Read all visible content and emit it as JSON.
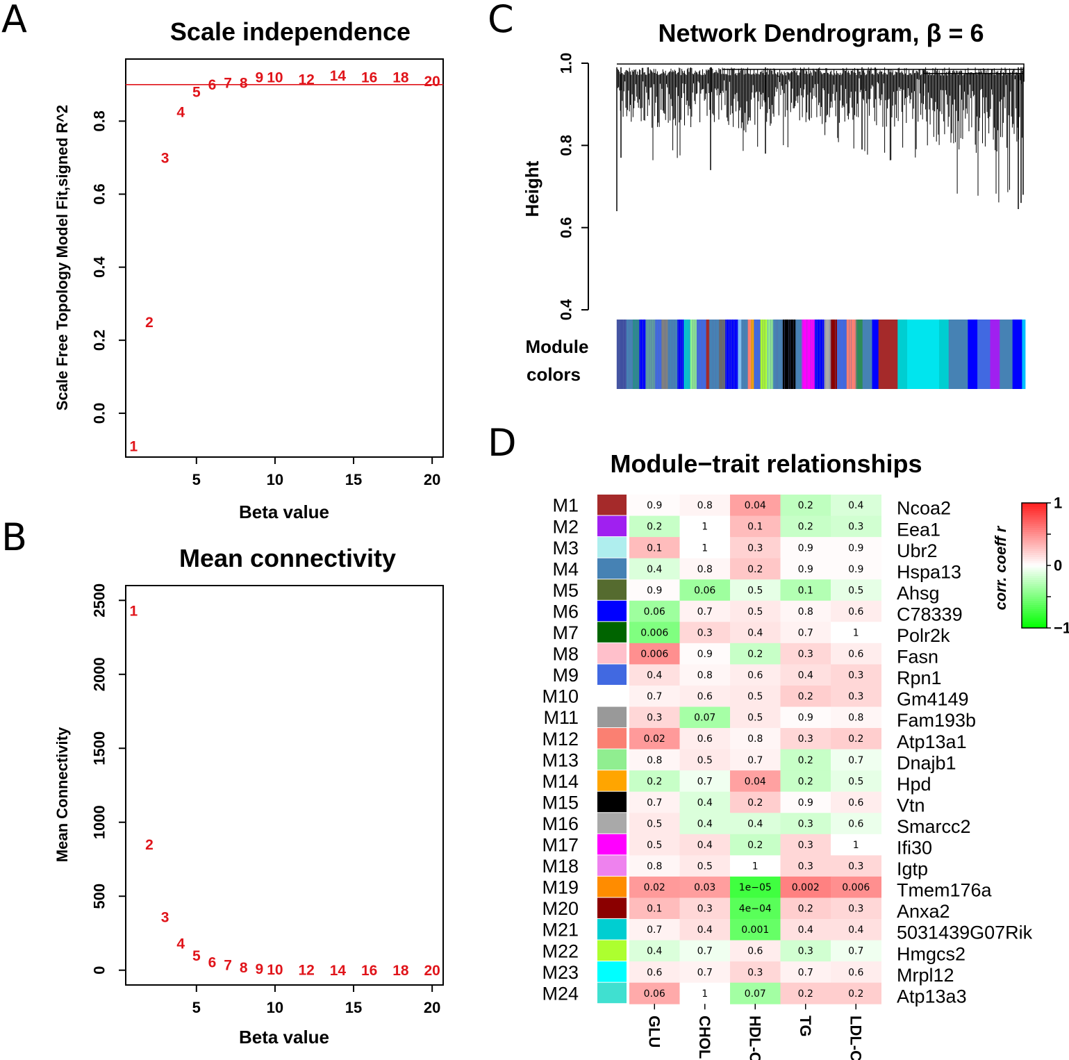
{
  "panel_letters": [
    "A",
    "B",
    "C",
    "D"
  ],
  "chart_data": [
    {
      "type": "scatter",
      "panel": "A",
      "title": "Scale independence",
      "xlabel": "Beta value",
      "ylabel": "Scale Free Topology Model Fit,signed R^2",
      "xlim": [
        0.5,
        20.7
      ],
      "ylim": [
        -0.12,
        0.97
      ],
      "x_ticks": [
        5,
        10,
        15,
        20
      ],
      "y_ticks": [
        0.0,
        0.2,
        0.4,
        0.6,
        0.8
      ],
      "y_tick_labels": [
        "0.0",
        "0.2",
        "0.4",
        "0.6",
        "0.8"
      ],
      "threshold_line": 0.9,
      "threshold_color": "#e0141a",
      "point_color": "#e0141a",
      "points": [
        {
          "x": 1,
          "y": -0.09,
          "label": "1"
        },
        {
          "x": 2,
          "y": 0.25,
          "label": "2"
        },
        {
          "x": 3,
          "y": 0.7,
          "label": "3"
        },
        {
          "x": 4,
          "y": 0.825,
          "label": "4"
        },
        {
          "x": 5,
          "y": 0.88,
          "label": "5"
        },
        {
          "x": 6,
          "y": 0.9,
          "label": "6"
        },
        {
          "x": 7,
          "y": 0.905,
          "label": "7"
        },
        {
          "x": 8,
          "y": 0.905,
          "label": "8"
        },
        {
          "x": 9,
          "y": 0.92,
          "label": "9"
        },
        {
          "x": 10,
          "y": 0.92,
          "label": "10"
        },
        {
          "x": 12,
          "y": 0.915,
          "label": "12"
        },
        {
          "x": 14,
          "y": 0.925,
          "label": "14"
        },
        {
          "x": 16,
          "y": 0.92,
          "label": "16"
        },
        {
          "x": 18,
          "y": 0.92,
          "label": "18"
        },
        {
          "x": 20,
          "y": 0.91,
          "label": "20"
        }
      ]
    },
    {
      "type": "scatter",
      "panel": "B",
      "title": "Mean connectivity",
      "xlabel": "Beta value",
      "ylabel": "Mean Connectivity",
      "xlim": [
        0.5,
        20.7
      ],
      "ylim": [
        -100,
        2600
      ],
      "x_ticks": [
        5,
        10,
        15,
        20
      ],
      "y_ticks": [
        0,
        500,
        1000,
        1500,
        2000,
        2500
      ],
      "y_tick_labels": [
        "0",
        "500",
        "1000",
        "1500",
        "2000",
        "2500"
      ],
      "point_color": "#e0141a",
      "points": [
        {
          "x": 1,
          "y": 2430,
          "label": "1"
        },
        {
          "x": 2,
          "y": 850,
          "label": "2"
        },
        {
          "x": 3,
          "y": 360,
          "label": "3"
        },
        {
          "x": 4,
          "y": 180,
          "label": "4"
        },
        {
          "x": 5,
          "y": 100,
          "label": "5"
        },
        {
          "x": 6,
          "y": 55,
          "label": "6"
        },
        {
          "x": 7,
          "y": 35,
          "label": "7"
        },
        {
          "x": 8,
          "y": 20,
          "label": "8"
        },
        {
          "x": 9,
          "y": 10,
          "label": "9"
        },
        {
          "x": 10,
          "y": 5,
          "label": "10"
        },
        {
          "x": 12,
          "y": 2,
          "label": "12"
        },
        {
          "x": 14,
          "y": 1,
          "label": "14"
        },
        {
          "x": 16,
          "y": 0,
          "label": "16"
        },
        {
          "x": 18,
          "y": 0,
          "label": "18"
        },
        {
          "x": 20,
          "y": 0,
          "label": "20"
        }
      ]
    },
    {
      "type": "dendrogram",
      "panel": "C",
      "title": "Network Dendrogram, β = 6",
      "ylabel": "Height",
      "ylim": [
        0.4,
        1.0
      ],
      "y_ticks": [
        0.4,
        0.6,
        0.8,
        1.0
      ],
      "y_tick_labels": [
        "0.4",
        "0.6",
        "0.8",
        "1.0"
      ],
      "color_bar_label_line1": "Module",
      "color_bar_label_line2": "colors",
      "color_bar": [
        {
          "color": "#3f4fa0",
          "w": 3
        },
        {
          "color": "#4682b4",
          "w": 2
        },
        {
          "color": "#2b8c8c",
          "w": 2
        },
        {
          "color": "#0000ff",
          "w": 2
        },
        {
          "color": "#5f9ea0",
          "w": 3
        },
        {
          "color": "#4169e1",
          "w": 2
        },
        {
          "color": "#808080",
          "w": 2
        },
        {
          "color": "#4682b4",
          "w": 3
        },
        {
          "color": "#0000ff",
          "w": 2
        },
        {
          "color": "#00ced1",
          "w": 2
        },
        {
          "color": "#90ee90",
          "w": 2
        },
        {
          "color": "#4169e1",
          "w": 3
        },
        {
          "color": "#a52a2a",
          "w": 1
        },
        {
          "color": "#4682b4",
          "w": 3
        },
        {
          "color": "#696969",
          "w": 2
        },
        {
          "color": "#0000ff",
          "w": 4
        },
        {
          "color": "#87cefa",
          "w": 1
        },
        {
          "color": "#4682b4",
          "w": 2
        },
        {
          "color": "#fa8072",
          "w": 1
        },
        {
          "color": "#ffa500",
          "w": 1
        },
        {
          "color": "#4169e1",
          "w": 2
        },
        {
          "color": "#adff2f",
          "w": 2
        },
        {
          "color": "#90ee90",
          "w": 2
        },
        {
          "color": "#4682b4",
          "w": 3
        },
        {
          "color": "#000000",
          "w": 4
        },
        {
          "color": "#4682b4",
          "w": 2
        },
        {
          "color": "#ff00ff",
          "w": 4
        },
        {
          "color": "#0000ff",
          "w": 3
        },
        {
          "color": "#a9a9a9",
          "w": 2
        },
        {
          "color": "#8b0000",
          "w": 2
        },
        {
          "color": "#4169e1",
          "w": 3
        },
        {
          "color": "#fa8072",
          "w": 3
        },
        {
          "color": "#2e8b57",
          "w": 2
        },
        {
          "color": "#4682b4",
          "w": 3
        },
        {
          "color": "#0000ff",
          "w": 2
        },
        {
          "color": "#a52a2a",
          "w": 6
        },
        {
          "color": "#00ced1",
          "w": 3
        },
        {
          "color": "#00e5ee",
          "w": 10
        },
        {
          "color": "#00ced1",
          "w": 3
        },
        {
          "color": "#4682b4",
          "w": 6
        },
        {
          "color": "#0000ff",
          "w": 3
        },
        {
          "color": "#4169e1",
          "w": 4
        },
        {
          "color": "#a020f0",
          "w": 3
        },
        {
          "color": "#4682b4",
          "w": 4
        },
        {
          "color": "#0000ff",
          "w": 3
        },
        {
          "color": "#00bfff",
          "w": 1
        }
      ]
    },
    {
      "type": "heatmap",
      "panel": "D",
      "title": "Module−trait relationships",
      "traits": [
        "GLU",
        "CHOL",
        "HDL-C",
        "TG",
        "LDL-C"
      ],
      "legend_title": "corr. coeff r",
      "legend_ticks": [
        "1",
        "0",
        "−1"
      ],
      "legend_range": [
        -1,
        1
      ],
      "rows": [
        {
          "module": "M1",
          "color": "#a52a2a",
          "gene": "Ncoa2",
          "p": [
            "0.9",
            "0.8",
            "0.04",
            "0.2",
            "0.4"
          ],
          "r": [
            0.02,
            0.05,
            0.42,
            -0.25,
            -0.15
          ]
        },
        {
          "module": "M2",
          "color": "#a020f0",
          "gene": "Eea1",
          "p": [
            "0.2",
            "1",
            "0.1",
            "0.2",
            "0.3"
          ],
          "r": [
            -0.22,
            0.0,
            0.3,
            -0.22,
            -0.18
          ]
        },
        {
          "module": "M3",
          "color": "#afeeee",
          "gene": "Ubr2",
          "p": [
            "0.1",
            "1",
            "0.3",
            "0.9",
            "0.9"
          ],
          "r": [
            0.3,
            0.0,
            0.2,
            0.02,
            0.02
          ]
        },
        {
          "module": "M4",
          "color": "#4682b4",
          "gene": "Hspa13",
          "p": [
            "0.4",
            "0.8",
            "0.2",
            "0.9",
            "0.9"
          ],
          "r": [
            -0.14,
            0.04,
            0.25,
            0.02,
            0.02
          ]
        },
        {
          "module": "M5",
          "color": "#556b2f",
          "gene": "Ahsg",
          "p": [
            "0.9",
            "0.06",
            "0.5",
            "0.1",
            "0.5"
          ],
          "r": [
            0.02,
            -0.38,
            -0.1,
            -0.3,
            -0.1
          ]
        },
        {
          "module": "M6",
          "color": "#0000ff",
          "gene": "C78339",
          "p": [
            "0.06",
            "0.7",
            "0.5",
            "0.8",
            "0.6"
          ],
          "r": [
            -0.38,
            0.06,
            0.1,
            0.04,
            0.08
          ]
        },
        {
          "module": "M7",
          "color": "#006400",
          "gene": "Polr2k",
          "p": [
            "0.006",
            "0.3",
            "0.4",
            "0.7",
            "1"
          ],
          "r": [
            -0.5,
            0.18,
            0.12,
            0.06,
            0.0
          ]
        },
        {
          "module": "M8",
          "color": "#ffc0cb",
          "gene": "Fasn",
          "p": [
            "0.006",
            "0.9",
            "0.2",
            "0.3",
            "0.6"
          ],
          "r": [
            0.5,
            0.02,
            -0.22,
            0.18,
            0.08
          ]
        },
        {
          "module": "M9",
          "color": "#4169e1",
          "gene": "Rpn1",
          "p": [
            "0.4",
            "0.8",
            "0.6",
            "0.4",
            "0.3"
          ],
          "r": [
            0.14,
            0.04,
            0.08,
            0.14,
            0.18
          ]
        },
        {
          "module": "M10",
          "color": "#ffffff",
          "gene": "Gm4149",
          "p": [
            "0.7",
            "0.6",
            "0.5",
            "0.2",
            "0.3"
          ],
          "r": [
            0.06,
            0.08,
            0.1,
            0.22,
            0.18
          ]
        },
        {
          "module": "M11",
          "color": "#999999",
          "gene": "Fam193b",
          "p": [
            "0.3",
            "0.07",
            "0.5",
            "0.9",
            "0.8"
          ],
          "r": [
            0.18,
            -0.35,
            0.1,
            0.02,
            0.04
          ]
        },
        {
          "module": "M12",
          "color": "#fa8072",
          "gene": "Atp13a1",
          "p": [
            "0.02",
            "0.6",
            "0.8",
            "0.3",
            "0.2"
          ],
          "r": [
            0.45,
            0.08,
            0.04,
            0.18,
            0.22
          ]
        },
        {
          "module": "M13",
          "color": "#90ee90",
          "gene": "Dnajb1",
          "p": [
            "0.8",
            "0.5",
            "0.7",
            "0.2",
            "0.7"
          ],
          "r": [
            0.04,
            0.1,
            0.06,
            -0.22,
            -0.06
          ]
        },
        {
          "module": "M14",
          "color": "#ffa500",
          "gene": "Hpd",
          "p": [
            "0.2",
            "0.7",
            "0.04",
            "0.2",
            "0.5"
          ],
          "r": [
            -0.22,
            -0.06,
            0.42,
            -0.22,
            -0.1
          ]
        },
        {
          "module": "M15",
          "color": "#000000",
          "gene": "Vtn",
          "p": [
            "0.7",
            "0.4",
            "0.2",
            "0.9",
            "0.6"
          ],
          "r": [
            0.06,
            -0.14,
            0.22,
            0.02,
            0.08
          ]
        },
        {
          "module": "M16",
          "color": "#a9a9a9",
          "gene": "Smarcc2",
          "p": [
            "0.5",
            "0.4",
            "0.4",
            "0.3",
            "0.6"
          ],
          "r": [
            0.1,
            -0.14,
            -0.14,
            -0.18,
            -0.08
          ]
        },
        {
          "module": "M17",
          "color": "#ff00ff",
          "gene": "Ifi30",
          "p": [
            "0.5",
            "0.4",
            "0.2",
            "0.3",
            "1"
          ],
          "r": [
            0.1,
            0.14,
            -0.22,
            0.18,
            0.0
          ]
        },
        {
          "module": "M18",
          "color": "#ee82ee",
          "gene": "Igtp",
          "p": [
            "0.8",
            "0.5",
            "1",
            "0.3",
            "0.3"
          ],
          "r": [
            0.04,
            0.1,
            0.0,
            0.18,
            0.18
          ]
        },
        {
          "module": "M19",
          "color": "#ff8c00",
          "gene": "Tmem176a",
          "p": [
            "0.02",
            "0.03",
            "1e−05",
            "0.002",
            "0.006"
          ],
          "r": [
            0.45,
            0.43,
            -0.75,
            0.56,
            0.5
          ]
        },
        {
          "module": "M20",
          "color": "#8b0000",
          "gene": "Anxa2",
          "p": [
            "0.1",
            "0.3",
            "4e−04",
            "0.2",
            "0.3"
          ],
          "r": [
            0.3,
            0.18,
            -0.65,
            0.22,
            0.18
          ]
        },
        {
          "module": "M21",
          "color": "#00ced1",
          "gene": "5031439G07Rik",
          "p": [
            "0.7",
            "0.4",
            "0.001",
            "0.4",
            "0.4"
          ],
          "r": [
            0.06,
            0.14,
            -0.6,
            0.14,
            0.14
          ]
        },
        {
          "module": "M22",
          "color": "#adff2f",
          "gene": "Hmgcs2",
          "p": [
            "0.4",
            "0.7",
            "0.6",
            "0.3",
            "0.7"
          ],
          "r": [
            -0.14,
            -0.06,
            0.08,
            -0.18,
            -0.06
          ]
        },
        {
          "module": "M23",
          "color": "#00ffff",
          "gene": "Mrpl12",
          "p": [
            "0.6",
            "0.7",
            "0.3",
            "0.7",
            "0.6"
          ],
          "r": [
            0.08,
            0.06,
            0.18,
            0.06,
            0.08
          ]
        },
        {
          "module": "M24",
          "color": "#40e0d0",
          "gene": "Atp13a3",
          "p": [
            "0.06",
            "1",
            "0.07",
            "0.2",
            "0.2"
          ],
          "r": [
            0.38,
            0.0,
            -0.36,
            0.22,
            0.22
          ]
        }
      ]
    }
  ]
}
